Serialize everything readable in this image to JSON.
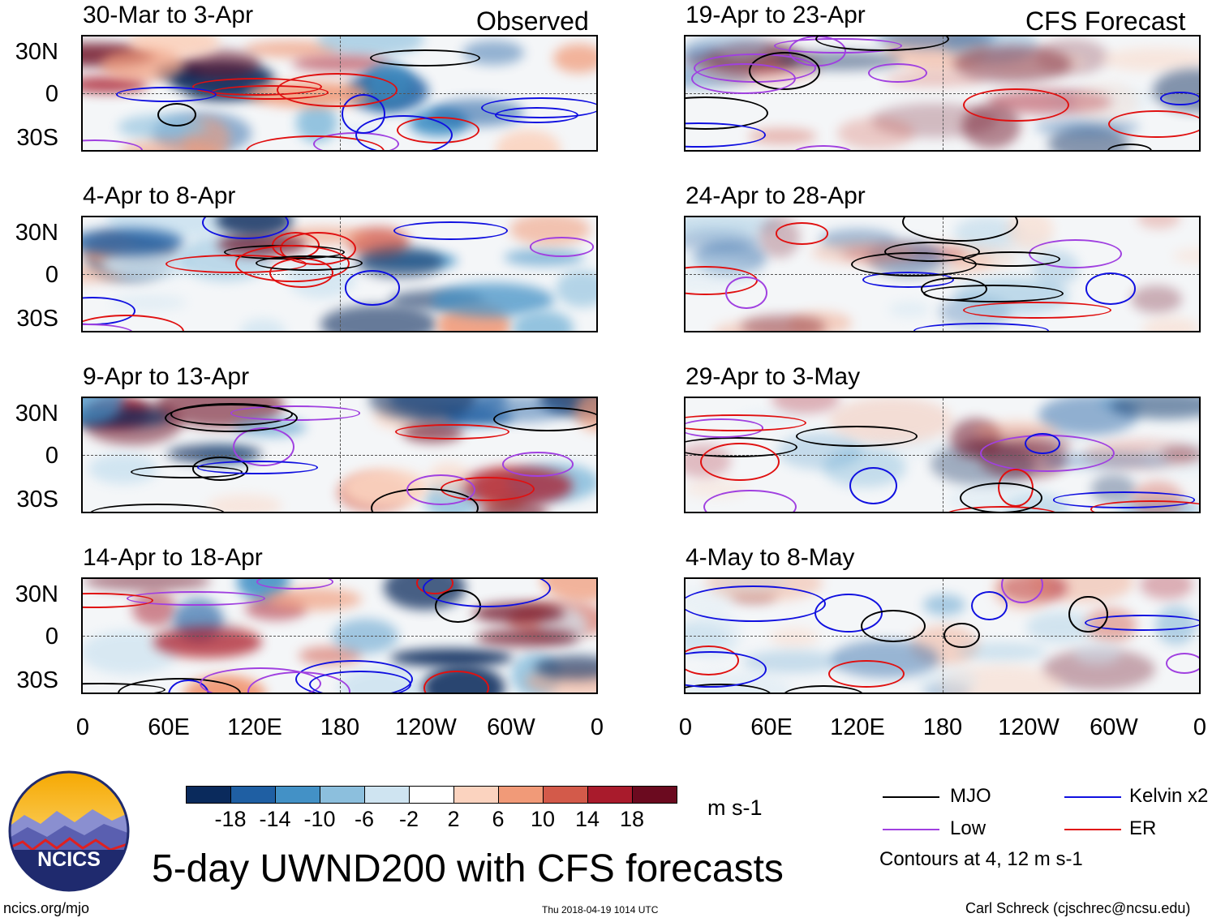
{
  "columns": {
    "observed_label": "Observed",
    "forecast_label": "CFS Forecast"
  },
  "panels": {
    "observed": [
      {
        "title": "30-Mar to 3-Apr"
      },
      {
        "title": "4-Apr to 8-Apr"
      },
      {
        "title": "9-Apr to 13-Apr"
      },
      {
        "title": "14-Apr to 18-Apr"
      }
    ],
    "forecast": [
      {
        "title": "19-Apr to 23-Apr"
      },
      {
        "title": "24-Apr to 28-Apr"
      },
      {
        "title": "29-Apr to 3-May"
      },
      {
        "title": "4-May to 8-May"
      }
    ]
  },
  "axes": {
    "lat_labels": [
      "30N",
      "0",
      "30S"
    ],
    "lon_labels": [
      "0",
      "60E",
      "120E",
      "180",
      "120W",
      "60W",
      "0"
    ]
  },
  "colorbar": {
    "labels": [
      "-18",
      "-14",
      "-10",
      "-6",
      "-2",
      "2",
      "6",
      "10",
      "14",
      "18"
    ],
    "colors": [
      "#0a2a5c",
      "#1f5fa3",
      "#4391c6",
      "#8cbfdd",
      "#cfe4f1",
      "#ffffff",
      "#fbd3bf",
      "#f19a78",
      "#d35a4a",
      "#a91b2c",
      "#6b0a1f"
    ],
    "units": "m s-1"
  },
  "legend": {
    "mjo": "MJO",
    "kelvin": "Kelvin x2",
    "low": "Low",
    "er": "ER",
    "contours_note": "Contours at 4, 12 m s-1",
    "colors": {
      "mjo": "#000000",
      "kelvin": "#1010e0",
      "low": "#a040e0",
      "er": "#e01010"
    }
  },
  "logo": {
    "text": "NCICS"
  },
  "main_title": "5-day UWND200 with CFS forecasts",
  "footer": {
    "url": "ncics.org/mjo",
    "timestamp": "Thu 2018-04-19 1014 UTC",
    "credit": "Carl Schreck (cjschrec@ncsu.edu)"
  }
}
